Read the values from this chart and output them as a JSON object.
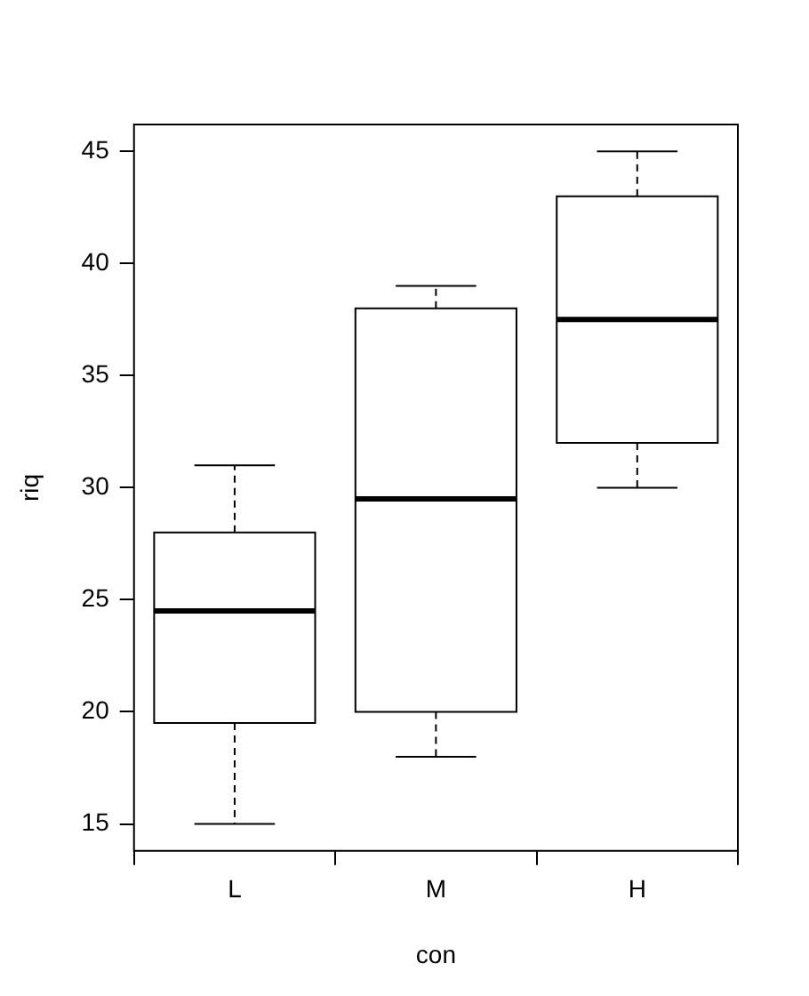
{
  "chart_data": {
    "type": "box",
    "xlabel": "con",
    "ylabel": "riq",
    "categories": [
      "L",
      "M",
      "H"
    ],
    "boxes": [
      {
        "low": 15,
        "q1": 19.5,
        "median": 24.5,
        "q3": 28,
        "high": 31
      },
      {
        "low": 18,
        "q1": 20,
        "median": 29.5,
        "q3": 38,
        "high": 39
      },
      {
        "low": 30,
        "q1": 32,
        "median": 37.5,
        "q3": 43,
        "high": 45
      }
    ],
    "ylim": [
      13.8,
      46.2
    ],
    "yticks": [
      15,
      20,
      25,
      30,
      35,
      40,
      45
    ],
    "grid": false,
    "legend": false
  }
}
